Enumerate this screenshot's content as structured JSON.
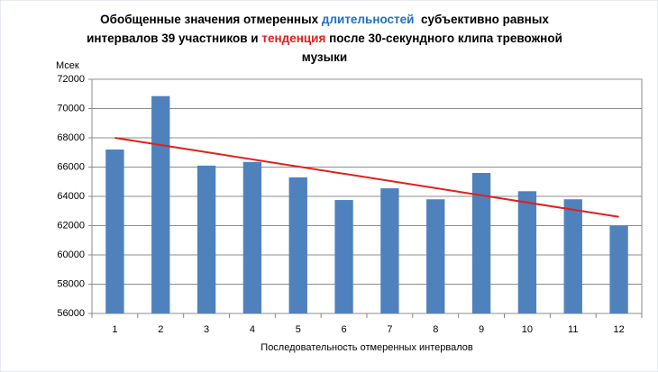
{
  "chart_data": {
    "type": "bar",
    "title_lines": [
      [
        {
          "text": "Обобщенные значения отмеренных "
        },
        {
          "text": "длительностей",
          "color": "#1f6fbf"
        },
        {
          "text": "  субъективно равных"
        }
      ],
      [
        {
          "text": "интервалов 39 участников и "
        },
        {
          "text": "тенденция",
          "color": "#e0201c"
        },
        {
          "text": " после 30-секундного клипа тревожной"
        }
      ],
      [
        {
          "text": "музыки"
        }
      ]
    ],
    "y_label": "Мсек",
    "x_label": "Последовательность  отмеренных  интервалов",
    "categories": [
      "1",
      "2",
      "3",
      "4",
      "5",
      "6",
      "7",
      "8",
      "9",
      "10",
      "11",
      "12"
    ],
    "values": [
      67200,
      70850,
      66100,
      66350,
      65300,
      63750,
      64550,
      63800,
      65600,
      64350,
      63800,
      62000
    ],
    "color": "#4f81bd",
    "trendline": {
      "color": "#e0201c",
      "values": [
        68000,
        62600
      ]
    },
    "ylim": [
      56000,
      72000
    ],
    "yticks": [
      56000,
      58000,
      60000,
      62000,
      64000,
      66000,
      68000,
      70000,
      72000
    ],
    "grid": true
  }
}
